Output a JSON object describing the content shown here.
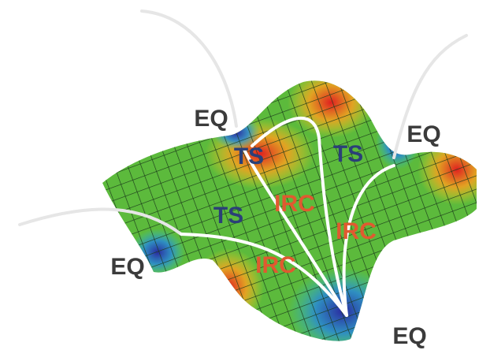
{
  "labels": [
    "EQ",
    "EQ",
    "EQ",
    "EQ",
    "TS",
    "TS",
    "TS",
    "IRC",
    "IRC",
    "IRC"
  ]
}
